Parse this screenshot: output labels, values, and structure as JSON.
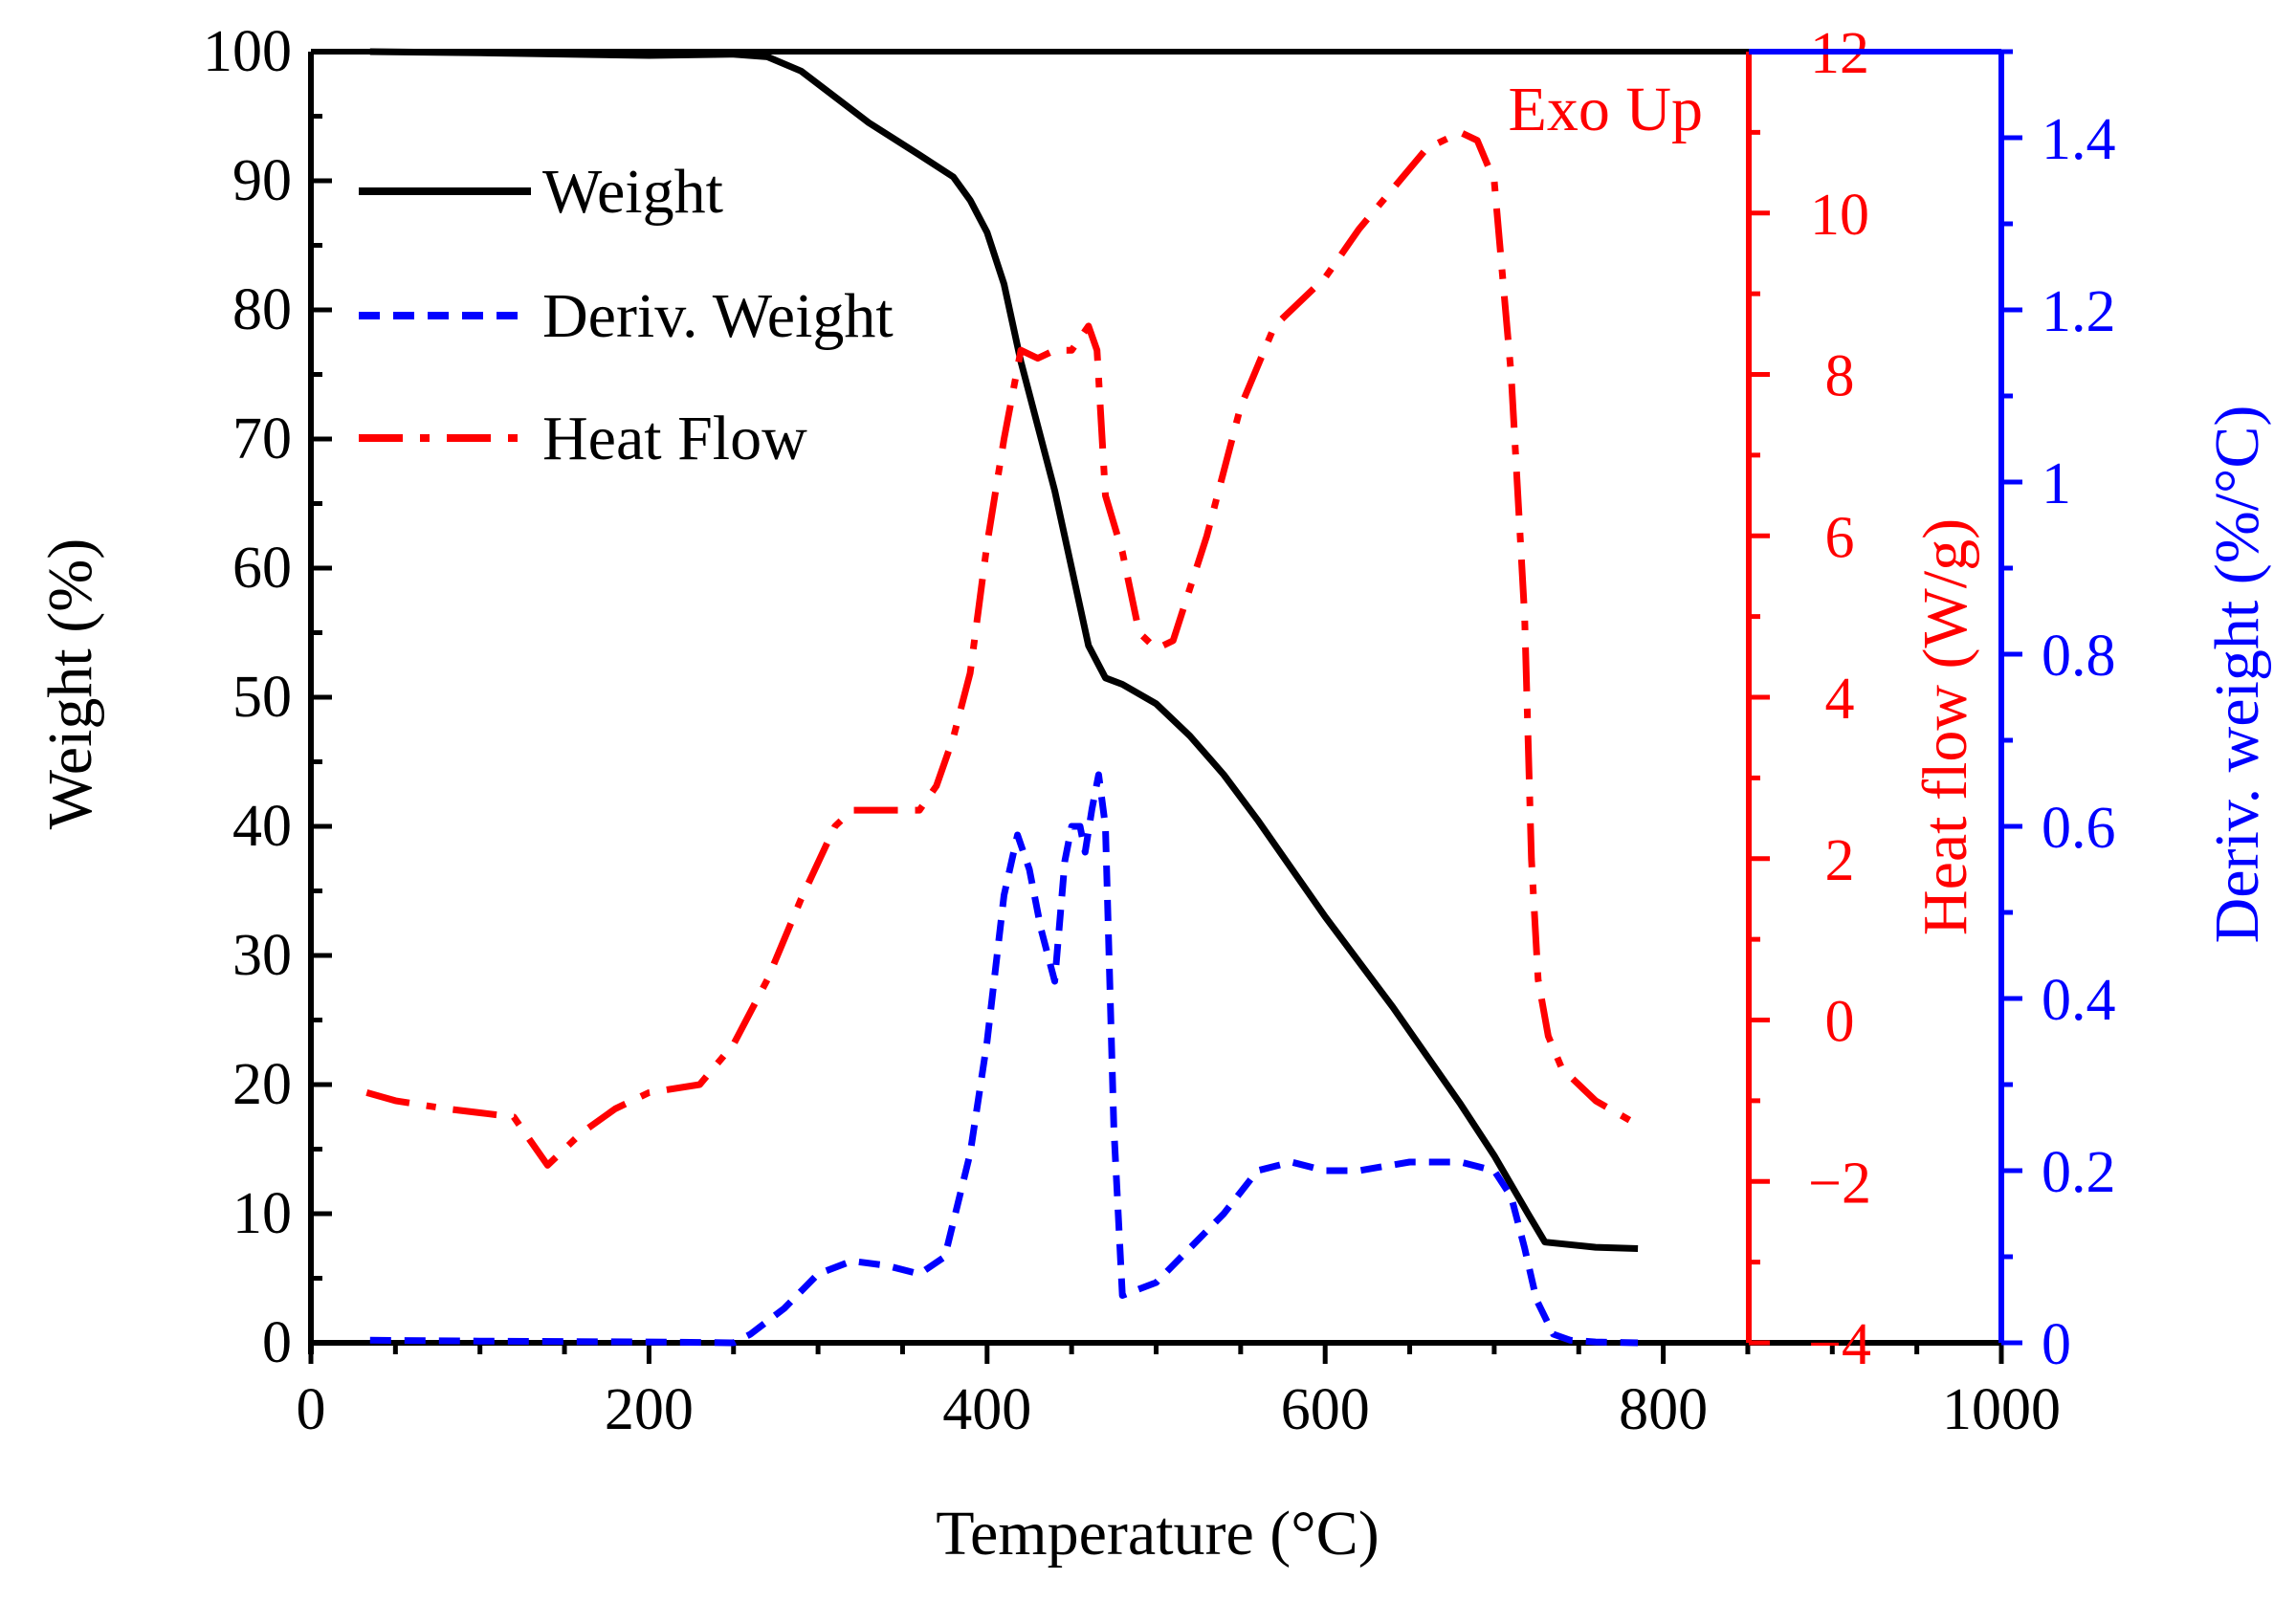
{
  "chart_data": {
    "type": "line",
    "annotation": "Exo Up",
    "xlabel": "Temperature (°C)",
    "xlim": [
      0,
      1000
    ],
    "xticks": [
      0,
      200,
      400,
      600,
      800,
      1000
    ],
    "axes": {
      "left": {
        "label": "Weight (%)",
        "lim": [
          0,
          100
        ],
        "ticks": [
          "0",
          "10",
          "20",
          "30",
          "40",
          "50",
          "60",
          "70",
          "80",
          "90",
          "100"
        ],
        "tick_values": [
          0,
          10,
          20,
          30,
          40,
          50,
          60,
          70,
          80,
          90,
          100
        ],
        "minor_step": 5,
        "color": "#000000"
      },
      "heat": {
        "label": "Heat flow (W/g)",
        "lim": [
          -4,
          12
        ],
        "ticks": [
          "−4",
          "−2",
          "0",
          "2",
          "4",
          "6",
          "8",
          "10",
          "12"
        ],
        "tick_values": [
          -4,
          -2,
          0,
          2,
          4,
          6,
          8,
          10,
          12
        ],
        "minor_step": 1,
        "color": "#ff0000"
      },
      "deriv": {
        "label": "Deriv. weight (%/°C)",
        "lim": [
          0,
          1.5
        ],
        "ticks": [
          "0",
          "0.2",
          "0.4",
          "0.6",
          "0.8",
          "1",
          "1.2",
          "1.4"
        ],
        "tick_values": [
          0,
          0.2,
          0.4,
          0.6,
          0.8,
          1,
          1.2,
          1.4
        ],
        "minor_step": 0.1,
        "color": "#0000ff"
      }
    },
    "legend": {
      "placement": "top-left"
    },
    "series": [
      {
        "name": "Weight",
        "axis": "left",
        "color": "#000000",
        "style": "solid",
        "x": [
          35,
          100,
          200,
          250,
          270,
          290,
          310,
          330,
          360,
          380,
          390,
          400,
          410,
          420,
          430,
          440,
          450,
          460,
          470,
          480,
          500,
          520,
          540,
          560,
          600,
          640,
          680,
          700,
          720,
          730,
          760,
          785
        ],
        "y": [
          100,
          99.9,
          99.7,
          99.8,
          99.6,
          98.5,
          96.5,
          94.5,
          92,
          90.3,
          88.5,
          86,
          82,
          76,
          71,
          66,
          60,
          54,
          51.5,
          51,
          49.5,
          47,
          44,
          40.5,
          33,
          26,
          18.5,
          14.5,
          10,
          7.8,
          7.4,
          7.3
        ]
      },
      {
        "name": "Deriv. Weight",
        "axis": "deriv",
        "color": "#0000ff",
        "style": "dash",
        "x": [
          35,
          100,
          200,
          250,
          260,
          280,
          300,
          320,
          340,
          360,
          375,
          390,
          400,
          410,
          418,
          425,
          432,
          440,
          446,
          450,
          455,
          458,
          462,
          466,
          470,
          475,
          480,
          500,
          520,
          540,
          560,
          580,
          600,
          620,
          650,
          680,
          700,
          710,
          718,
          725,
          735,
          745,
          760,
          785
        ],
        "y": [
          0.003,
          0.002,
          0.001,
          0,
          0.01,
          0.04,
          0.08,
          0.095,
          0.09,
          0.08,
          0.1,
          0.22,
          0.35,
          0.52,
          0.59,
          0.55,
          0.48,
          0.42,
          0.56,
          0.6,
          0.6,
          0.57,
          0.62,
          0.66,
          0.6,
          0.25,
          0.055,
          0.07,
          0.11,
          0.15,
          0.2,
          0.21,
          0.2,
          0.2,
          0.21,
          0.21,
          0.2,
          0.17,
          0.11,
          0.05,
          0.01,
          0.003,
          0.001,
          0
        ]
      },
      {
        "name": "Heat Flow",
        "axis": "heat",
        "color": "#ff0000",
        "style": "dashdot",
        "x": [
          33,
          50,
          80,
          100,
          120,
          130,
          140,
          150,
          160,
          180,
          200,
          230,
          250,
          270,
          290,
          310,
          320,
          340,
          360,
          370,
          380,
          390,
          400,
          410,
          420,
          430,
          440,
          450,
          460,
          465,
          470,
          480,
          490,
          500,
          510,
          530,
          550,
          570,
          600,
          620,
          640,
          660,
          680,
          690,
          700,
          710,
          718,
          722,
          726,
          732,
          740,
          760,
          785
        ],
        "y": [
          -0.9,
          -1,
          -1.1,
          -1.15,
          -1.2,
          -1.5,
          -1.8,
          -1.6,
          -1.4,
          -1.1,
          -0.9,
          -0.8,
          -0.3,
          0.5,
          1.5,
          2.4,
          2.6,
          2.6,
          2.6,
          2.9,
          3.5,
          4.3,
          5.9,
          7.2,
          8.3,
          8.2,
          8.3,
          8.3,
          8.6,
          8.3,
          6.5,
          5.8,
          4.8,
          4.6,
          4.7,
          6,
          7.6,
          8.6,
          9.2,
          9.8,
          10.3,
          10.8,
          11,
          10.9,
          10.4,
          8,
          5,
          2,
          0.5,
          -0.2,
          -0.6,
          -1,
          -1.3
        ]
      }
    ]
  }
}
